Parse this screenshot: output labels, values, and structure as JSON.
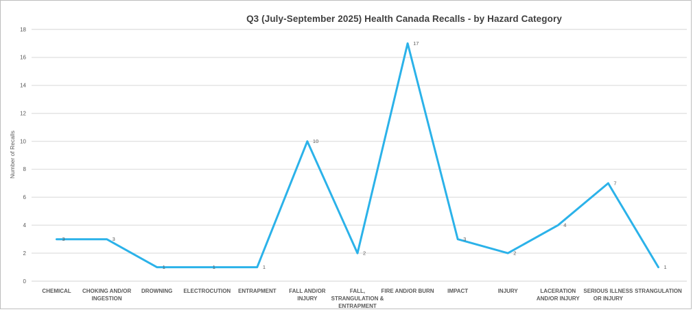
{
  "window": {
    "background": "#ffffff",
    "frame_border_color": "#bdbdbd"
  },
  "chart_data": {
    "type": "line",
    "title": "Q3 (July-September 2025) Health Canada Recalls - by Hazard Category",
    "ylabel": "Number of Recalls",
    "xlabel": "",
    "categories": [
      "CHEMICAL",
      "CHOKING AND/OR INGESTION",
      "DROWNING",
      "ELECTROCUTION",
      "ENTRAPMENT",
      "FALL AND/OR INJURY",
      "FALL, STRANGULATION & ENTRAPMENT",
      "FIRE AND/OR BURN",
      "IMPACT",
      "INJURY",
      "LACERATION AND/OR INJURY",
      "SERIOUS ILLNESS OR INJURY",
      "STRANGULATION"
    ],
    "xtick_lines": [
      [
        "CHEMICAL"
      ],
      [
        "CHOKING AND/OR",
        "INGESTION"
      ],
      [
        "DROWNING"
      ],
      [
        "ELECTROCUTION"
      ],
      [
        "ENTRAPMENT"
      ],
      [
        "FALL AND/OR",
        "INJURY"
      ],
      [
        "FALL,",
        "STRANGULATION &",
        "ENTRAPMENT"
      ],
      [
        "FIRE AND/OR BURN"
      ],
      [
        "IMPACT"
      ],
      [
        "INJURY"
      ],
      [
        "LACERATION",
        "AND/OR INJURY"
      ],
      [
        "SERIOUS ILLNESS",
        "OR INJURY"
      ],
      [
        "STRANGULATION"
      ]
    ],
    "values": [
      3,
      3,
      1,
      1,
      1,
      10,
      2,
      17,
      3,
      2,
      4,
      7,
      1
    ],
    "data_labels": [
      3,
      3,
      1,
      1,
      1,
      10,
      2,
      17,
      3,
      2,
      4,
      7,
      1
    ],
    "yticks": [
      0,
      2,
      4,
      6,
      8,
      10,
      12,
      14,
      16,
      18
    ],
    "ylim": [
      0,
      18
    ],
    "grid": true,
    "legend": false,
    "colors": {
      "line": "#2bb2e9",
      "grid": "#e2e2e2",
      "tick_label": "#595959",
      "category_label": "#595959",
      "data_label": "#595959",
      "title": "#404040",
      "axis_title": "#595959"
    }
  }
}
